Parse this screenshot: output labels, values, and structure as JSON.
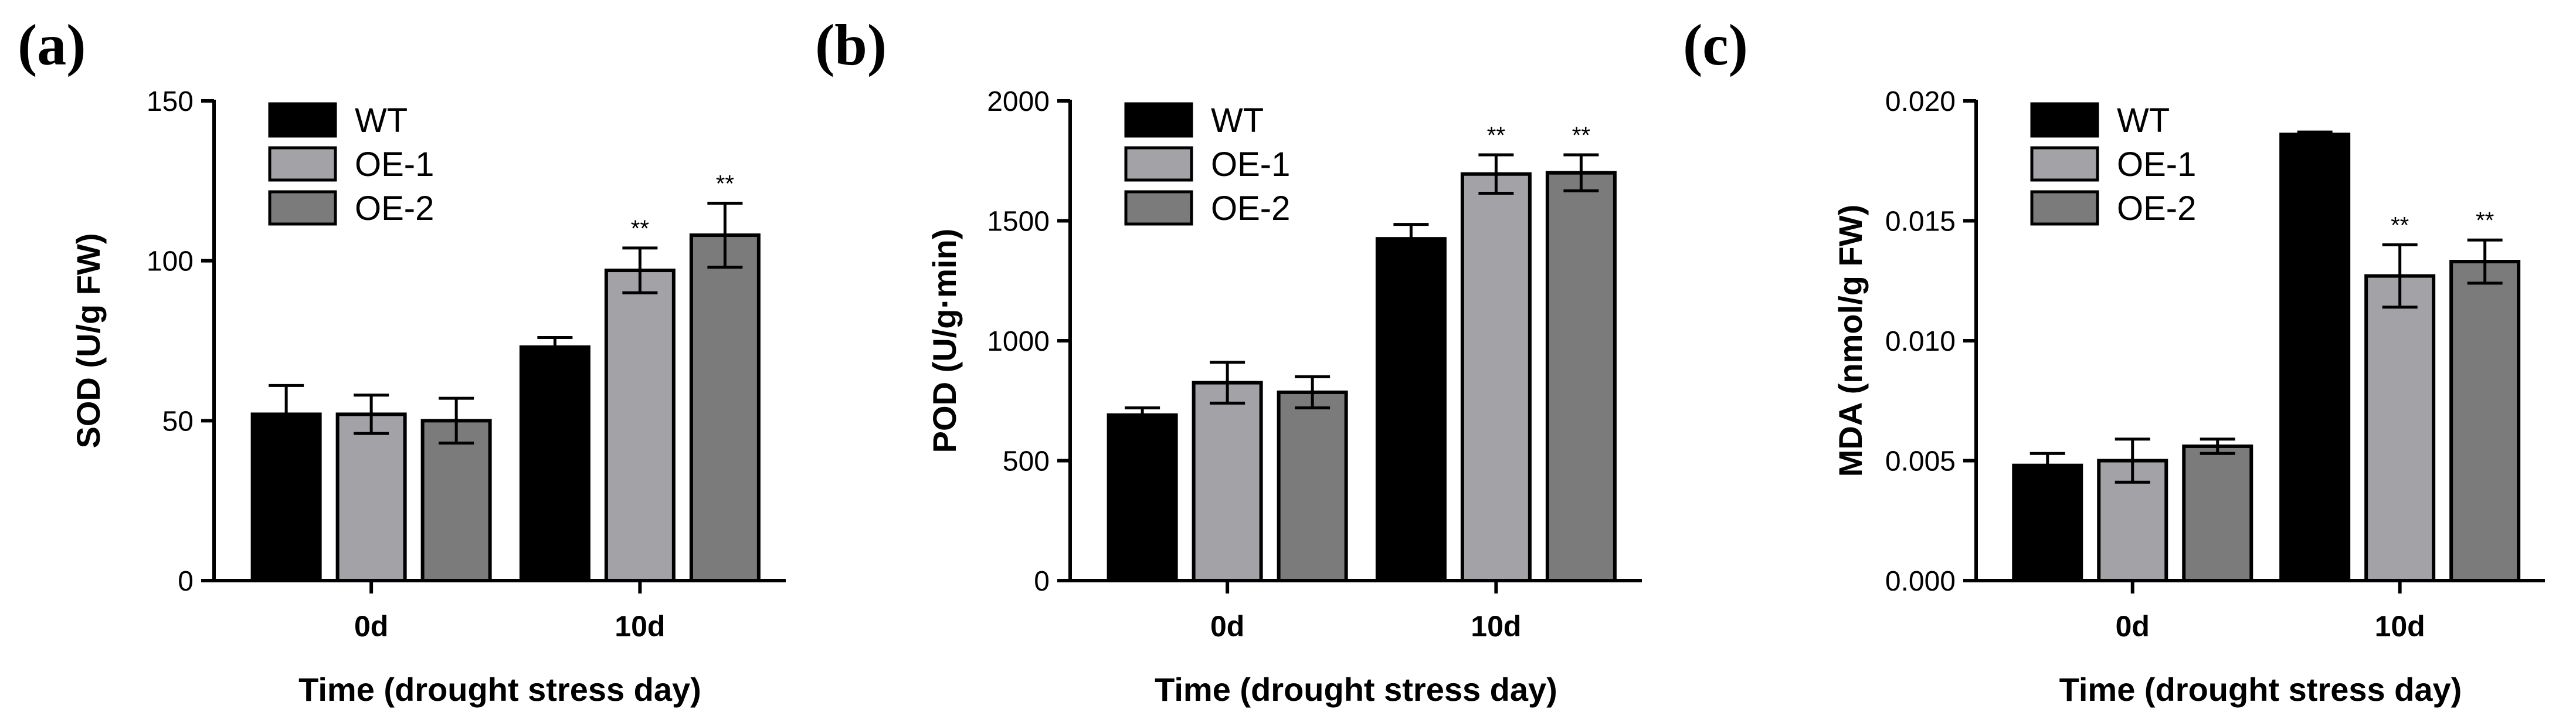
{
  "colors": {
    "WT": "#000000",
    "OE-1": "#a3a3a7",
    "OE-2": "#7b7b7b",
    "axis": "#000000"
  },
  "chart_data": [
    {
      "type": "bar",
      "panel_label": "(a)",
      "categories": [
        "0d",
        "10d"
      ],
      "series": [
        {
          "name": "WT",
          "values": [
            52,
            73
          ],
          "errors": [
            9,
            3
          ]
        },
        {
          "name": "OE-1",
          "values": [
            52,
            97
          ],
          "errors": [
            6,
            7
          ]
        },
        {
          "name": "OE-2",
          "values": [
            50,
            108
          ],
          "errors": [
            7,
            10
          ]
        }
      ],
      "significance": [
        [
          "",
          ""
        ],
        [
          "",
          "**"
        ],
        [
          "",
          "**"
        ]
      ],
      "xlabel": "Time (drought stress day)",
      "ylabel": "SOD (U/g FW)",
      "ylim": [
        0,
        150
      ],
      "yticks": [
        "0",
        "50",
        "100",
        "150"
      ],
      "legend": "top-left",
      "grid": false
    },
    {
      "type": "bar",
      "panel_label": "(b)",
      "categories": [
        "0d",
        "10d"
      ],
      "series": [
        {
          "name": "WT",
          "values": [
            690,
            1425
          ],
          "errors": [
            30,
            60
          ]
        },
        {
          "name": "OE-1",
          "values": [
            825,
            1695
          ],
          "errors": [
            85,
            80
          ]
        },
        {
          "name": "OE-2",
          "values": [
            785,
            1700
          ],
          "errors": [
            65,
            75
          ]
        }
      ],
      "significance": [
        [
          "",
          ""
        ],
        [
          "",
          "**"
        ],
        [
          "",
          "**"
        ]
      ],
      "xlabel": "Time (drought stress day)",
      "ylabel": "POD (U/g·min)",
      "ylim": [
        0,
        2000
      ],
      "yticks": [
        "0",
        "500",
        "1000",
        "1500",
        "2000"
      ],
      "legend": "top-left",
      "grid": false
    },
    {
      "type": "bar",
      "panel_label": "(c)",
      "categories": [
        "0d",
        "10d"
      ],
      "series": [
        {
          "name": "WT",
          "values": [
            0.0048,
            0.0186
          ],
          "errors": [
            0.0005,
            0.0001
          ]
        },
        {
          "name": "OE-1",
          "values": [
            0.005,
            0.0127
          ],
          "errors": [
            0.0009,
            0.0013
          ]
        },
        {
          "name": "OE-2",
          "values": [
            0.0056,
            0.0133
          ],
          "errors": [
            0.0003,
            0.0009
          ]
        }
      ],
      "significance": [
        [
          "",
          ""
        ],
        [
          "",
          "**"
        ],
        [
          "",
          "**"
        ]
      ],
      "xlabel": "Time (drought stress day)",
      "ylabel": "MDA (nmol/g FW)",
      "ylim": [
        0,
        0.02
      ],
      "yticks": [
        "0.000",
        "0.005",
        "0.010",
        "0.015",
        "0.020"
      ],
      "legend": "top-left",
      "grid": false
    }
  ]
}
